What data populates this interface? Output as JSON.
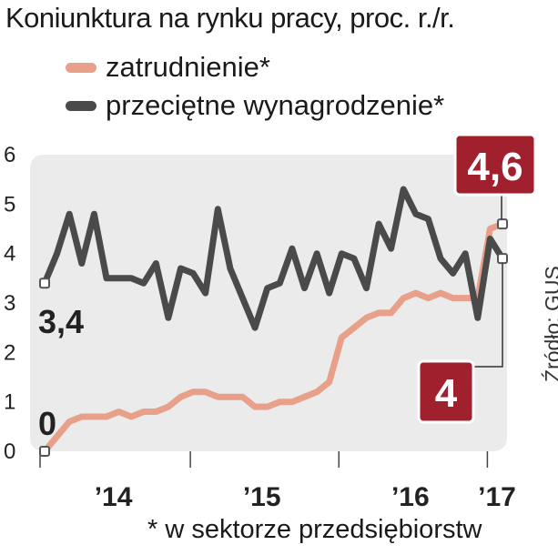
{
  "title": "Koniunktura na rynku pracy, proc. r./r.",
  "footnote": "* w sektorze przedsiębiorstw",
  "source": "Źródło: GUS",
  "colors": {
    "employment": "#e8a08a",
    "wages": "#4a4a4a",
    "plot_bg": "#ebebeb",
    "callout_bg": "#a0202e"
  },
  "chart_data": {
    "type": "line",
    "title": "Koniunktura na rynku pracy, proc. r./r.",
    "xlabel": "",
    "ylabel": "",
    "ylim": [
      0,
      6
    ],
    "yticks": [
      "0",
      "1",
      "2",
      "3",
      "4",
      "5",
      "6"
    ],
    "xticks": [
      {
        "label": "’14",
        "at": 6
      },
      {
        "label": "’15",
        "at": 18
      },
      {
        "label": "’16",
        "at": 30
      },
      {
        "label": "’17",
        "at": 37
      }
    ],
    "grid": false,
    "legend": "top-left",
    "series": [
      {
        "name": "zatrudnienie*",
        "values": [
          0,
          0.3,
          0.6,
          0.7,
          0.7,
          0.7,
          0.8,
          0.7,
          0.8,
          0.8,
          0.9,
          1.1,
          1.2,
          1.2,
          1.1,
          1.1,
          1.1,
          0.9,
          0.9,
          1.0,
          1.0,
          1.1,
          1.2,
          1.4,
          2.3,
          2.5,
          2.7,
          2.8,
          2.8,
          3.1,
          3.2,
          3.1,
          3.2,
          3.1,
          3.1,
          3.1,
          4.5,
          4.6
        ]
      },
      {
        "name": "przeciętne wynagrodzenie*",
        "values": [
          3.4,
          4.0,
          4.8,
          3.8,
          4.8,
          3.5,
          3.5,
          3.5,
          3.4,
          3.8,
          2.7,
          3.7,
          3.6,
          3.2,
          4.9,
          3.7,
          3.1,
          2.5,
          3.3,
          3.4,
          4.1,
          3.3,
          4.0,
          3.2,
          4.0,
          3.9,
          3.3,
          4.6,
          4.1,
          5.3,
          4.8,
          4.7,
          3.9,
          3.6,
          4.0,
          2.7,
          4.3,
          3.9
        ]
      }
    ],
    "annotations": [
      {
        "text": "0",
        "series": 0,
        "point": "first",
        "value": 0
      },
      {
        "text": "3,4",
        "series": 1,
        "point": "first",
        "value": 3.4
      },
      {
        "text": "4,6",
        "series": 0,
        "point": "last",
        "value": 4.6
      },
      {
        "text": "4",
        "series": 1,
        "point": "last",
        "value": 3.9
      }
    ]
  }
}
